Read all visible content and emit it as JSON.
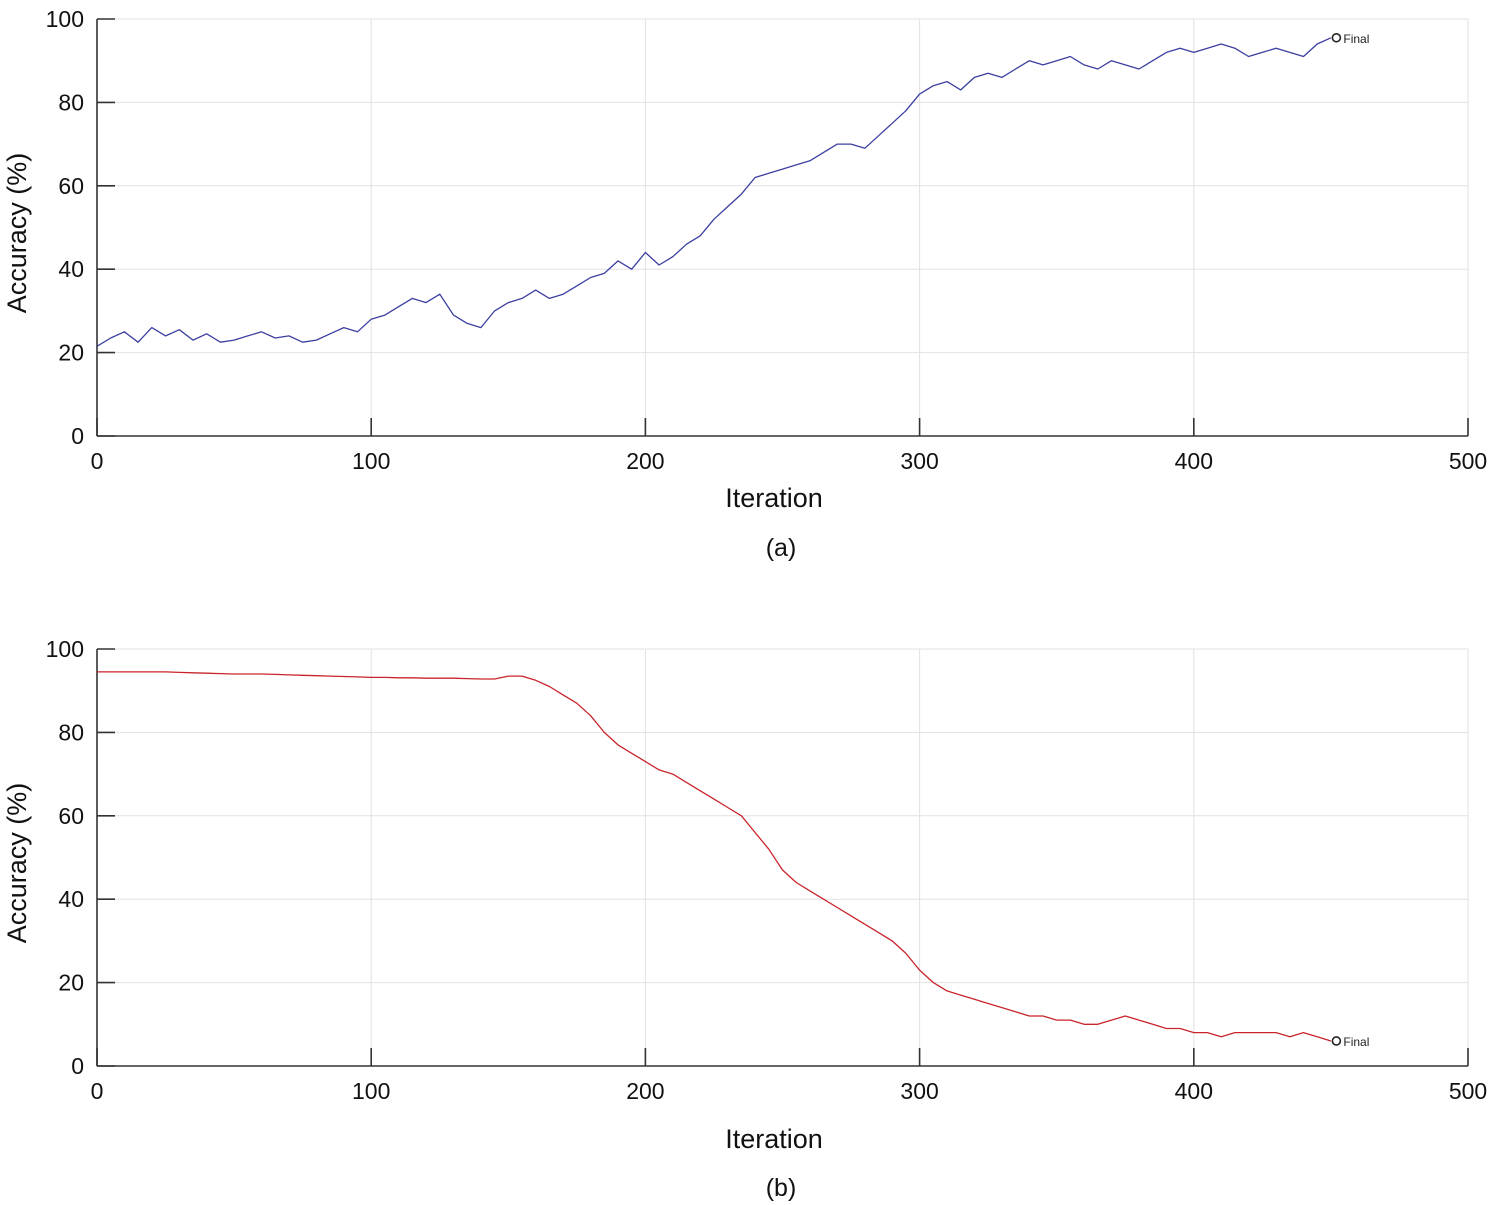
{
  "figure": {
    "captions": [
      "(a)",
      "(b)"
    ]
  },
  "final_label": "Final",
  "chart_data": [
    {
      "type": "line",
      "title": "",
      "xlabel": "Iteration",
      "ylabel": "Accuracy (%)",
      "xlim": [
        0,
        500
      ],
      "ylim": [
        0,
        100
      ],
      "xticks": [
        0,
        100,
        200,
        300,
        400,
        500
      ],
      "yticks": [
        0,
        20,
        40,
        60,
        80,
        100
      ],
      "grid": true,
      "line_color": "#3b3fa0",
      "annotation": {
        "label": "Final",
        "x": 452,
        "y": 95.5
      },
      "series": [
        {
          "x": [
            0,
            5,
            10,
            15,
            20,
            25,
            30,
            35,
            40,
            45,
            50,
            55,
            60,
            65,
            70,
            75,
            80,
            85,
            90,
            95,
            100,
            105,
            110,
            115,
            120,
            125,
            130,
            135,
            140,
            145,
            150,
            155,
            160,
            165,
            170,
            175,
            180,
            185,
            190,
            195,
            200,
            205,
            210,
            215,
            220,
            225,
            230,
            235,
            240,
            245,
            250,
            255,
            260,
            265,
            270,
            275,
            280,
            285,
            290,
            295,
            300,
            305,
            310,
            315,
            320,
            325,
            330,
            335,
            340,
            345,
            350,
            355,
            360,
            365,
            370,
            375,
            380,
            385,
            390,
            395,
            400,
            405,
            410,
            415,
            420,
            425,
            430,
            435,
            440,
            445,
            450
          ],
          "y": [
            21.5,
            23.5,
            25,
            22.5,
            26,
            24,
            25.5,
            23,
            24.5,
            22.5,
            23,
            24,
            25,
            23.5,
            24,
            22.5,
            23,
            24.5,
            26,
            25,
            28,
            29,
            31,
            33,
            32,
            34,
            29,
            27,
            26,
            30,
            32,
            33,
            35,
            33,
            34,
            36,
            38,
            39,
            42,
            40,
            44,
            41,
            43,
            46,
            48,
            52,
            55,
            58,
            62,
            63,
            64,
            65,
            66,
            68,
            70,
            70,
            69,
            72,
            75,
            78,
            82,
            84,
            85,
            83,
            86,
            87,
            86,
            88,
            90,
            89,
            90,
            91,
            89,
            88,
            90,
            89,
            88,
            90,
            92,
            93,
            92,
            93,
            94,
            93,
            91,
            92,
            93,
            92,
            91,
            94,
            95.5
          ]
        }
      ]
    },
    {
      "type": "line",
      "title": "",
      "xlabel": "Iteration",
      "ylabel": "Accuracy (%)",
      "xlim": [
        0,
        500
      ],
      "ylim": [
        0,
        100
      ],
      "xticks": [
        0,
        100,
        200,
        300,
        400,
        500
      ],
      "yticks": [
        0,
        20,
        40,
        60,
        80,
        100
      ],
      "grid": true,
      "line_color": "#c9242b",
      "annotation": {
        "label": "Final",
        "x": 452,
        "y": 6
      },
      "series": [
        {
          "x": [
            0,
            5,
            10,
            15,
            20,
            25,
            30,
            35,
            40,
            45,
            50,
            55,
            60,
            65,
            70,
            75,
            80,
            85,
            90,
            95,
            100,
            105,
            110,
            115,
            120,
            125,
            130,
            135,
            140,
            145,
            150,
            155,
            160,
            165,
            170,
            175,
            180,
            185,
            190,
            195,
            200,
            205,
            210,
            215,
            220,
            225,
            230,
            235,
            240,
            245,
            250,
            255,
            260,
            265,
            270,
            275,
            280,
            285,
            290,
            295,
            300,
            305,
            310,
            315,
            320,
            325,
            330,
            335,
            340,
            345,
            350,
            355,
            360,
            365,
            370,
            375,
            380,
            385,
            390,
            395,
            400,
            405,
            410,
            415,
            420,
            425,
            430,
            435,
            440,
            445,
            450
          ],
          "y": [
            94.5,
            94.5,
            94.5,
            94.5,
            94.5,
            94.5,
            94.4,
            94.3,
            94.2,
            94.1,
            94,
            94,
            94,
            93.9,
            93.8,
            93.7,
            93.6,
            93.5,
            93.4,
            93.3,
            93.2,
            93.2,
            93.1,
            93.1,
            93,
            93,
            93,
            92.9,
            92.8,
            92.8,
            93.5,
            93.5,
            92.5,
            91,
            89,
            87,
            84,
            80,
            77,
            75,
            73,
            71,
            70,
            68,
            66,
            64,
            62,
            60,
            56,
            52,
            47,
            44,
            42,
            40,
            38,
            36,
            34,
            32,
            30,
            27,
            23,
            20,
            18,
            17,
            16,
            15,
            14,
            13,
            12,
            12,
            11,
            11,
            10,
            10,
            11,
            12,
            11,
            10,
            9,
            9,
            8,
            8,
            7,
            8,
            8,
            8,
            8,
            7,
            8,
            7,
            6
          ]
        }
      ]
    }
  ]
}
